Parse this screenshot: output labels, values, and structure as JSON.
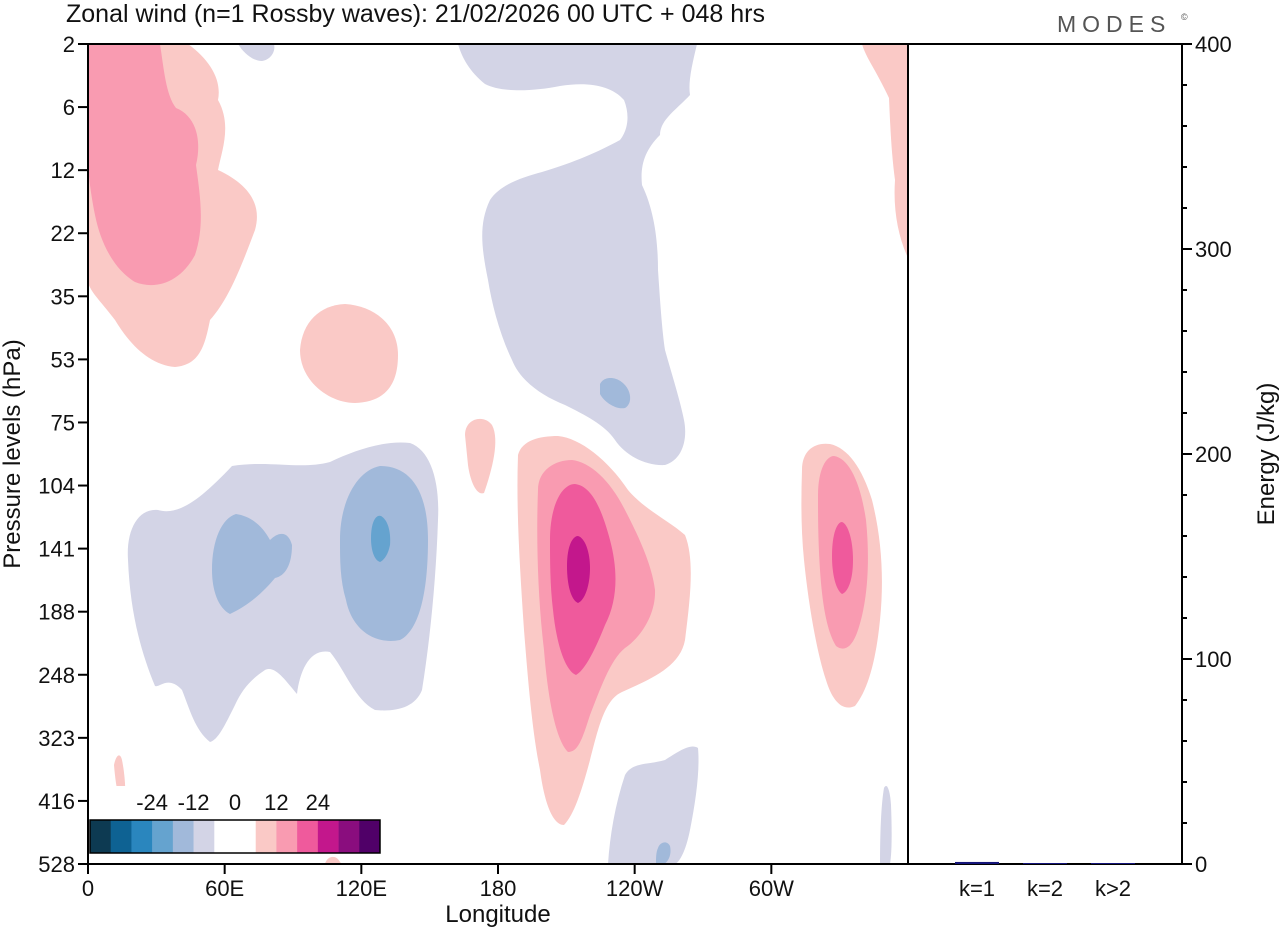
{
  "title": "Zonal wind (n=1 Rossby waves):  21/02/2026  00 UTC  + 048 hrs",
  "brand": "MODES",
  "brand_mark": "©",
  "chart_data": [
    {
      "type": "heatmap",
      "title": "Zonal wind (n=1 Rossby waves):  21/02/2026  00 UTC  + 048 hrs",
      "xlabel": "Longitude",
      "ylabel": "Pressure levels (hPa)",
      "x_range_deg_east": [
        0,
        360
      ],
      "x_ticks": [
        {
          "lon": 0,
          "label": "0"
        },
        {
          "lon": 60,
          "label": "60E"
        },
        {
          "lon": 120,
          "label": "120E"
        },
        {
          "lon": 180,
          "label": "180"
        },
        {
          "lon": 240,
          "label": "120W"
        },
        {
          "lon": 300,
          "label": "60W"
        }
      ],
      "y_levels": [
        "2",
        "6",
        "12",
        "22",
        "35",
        "53",
        "75",
        "104",
        "141",
        "188",
        "248",
        "323",
        "416",
        "528"
      ],
      "contour_levels": [
        -24,
        -12,
        0,
        12,
        24
      ],
      "colorbar": {
        "labels": [
          "-24",
          "-12",
          "0",
          "12",
          "24"
        ],
        "colors": [
          "#0d3a52",
          "#0e6293",
          "#2a86be",
          "#65a3cf",
          "#a1b9da",
          "#d3d4e6",
          "#ffffff",
          "#ffffff",
          "#fac9c6",
          "#f99bb1",
          "#ef5a9c",
          "#c3178c",
          "#8a0d7e",
          "#500068"
        ]
      },
      "features": [
        {
          "id": "upper-west-jet",
          "lon_range": [
            0,
            75
          ],
          "level_range": [
            "2",
            "53"
          ],
          "sign": "positive",
          "max_band": 2
        },
        {
          "id": "upper-date-line-trough",
          "lon_range": [
            170,
            265
          ],
          "level_range": [
            "2",
            "104"
          ],
          "sign": "negative",
          "max_band": 2
        },
        {
          "id": "mid-level-west-pacific",
          "lon_range": [
            15,
            155
          ],
          "level_range": [
            "75",
            "323"
          ],
          "sign": "negative",
          "max_band": 3
        },
        {
          "id": "central-pacific-jet",
          "lon_range": [
            190,
            265
          ],
          "level_range": [
            "104",
            "416"
          ],
          "sign": "positive",
          "max_band": 4
        },
        {
          "id": "east-pacific-jet",
          "lon_range": [
            315,
            350
          ],
          "level_range": [
            "104",
            "248"
          ],
          "sign": "positive",
          "max_band": 3
        }
      ]
    },
    {
      "type": "bar",
      "ylabel": "Energy (J/kg)",
      "ylim": [
        0,
        400
      ],
      "y_ticks": [
        "0",
        "100",
        "200",
        "300",
        "400"
      ],
      "categories": [
        "k=1",
        "k=2",
        "k>2"
      ],
      "values": [
        1.0,
        0.3,
        0.4
      ],
      "color": "#15157a"
    }
  ]
}
